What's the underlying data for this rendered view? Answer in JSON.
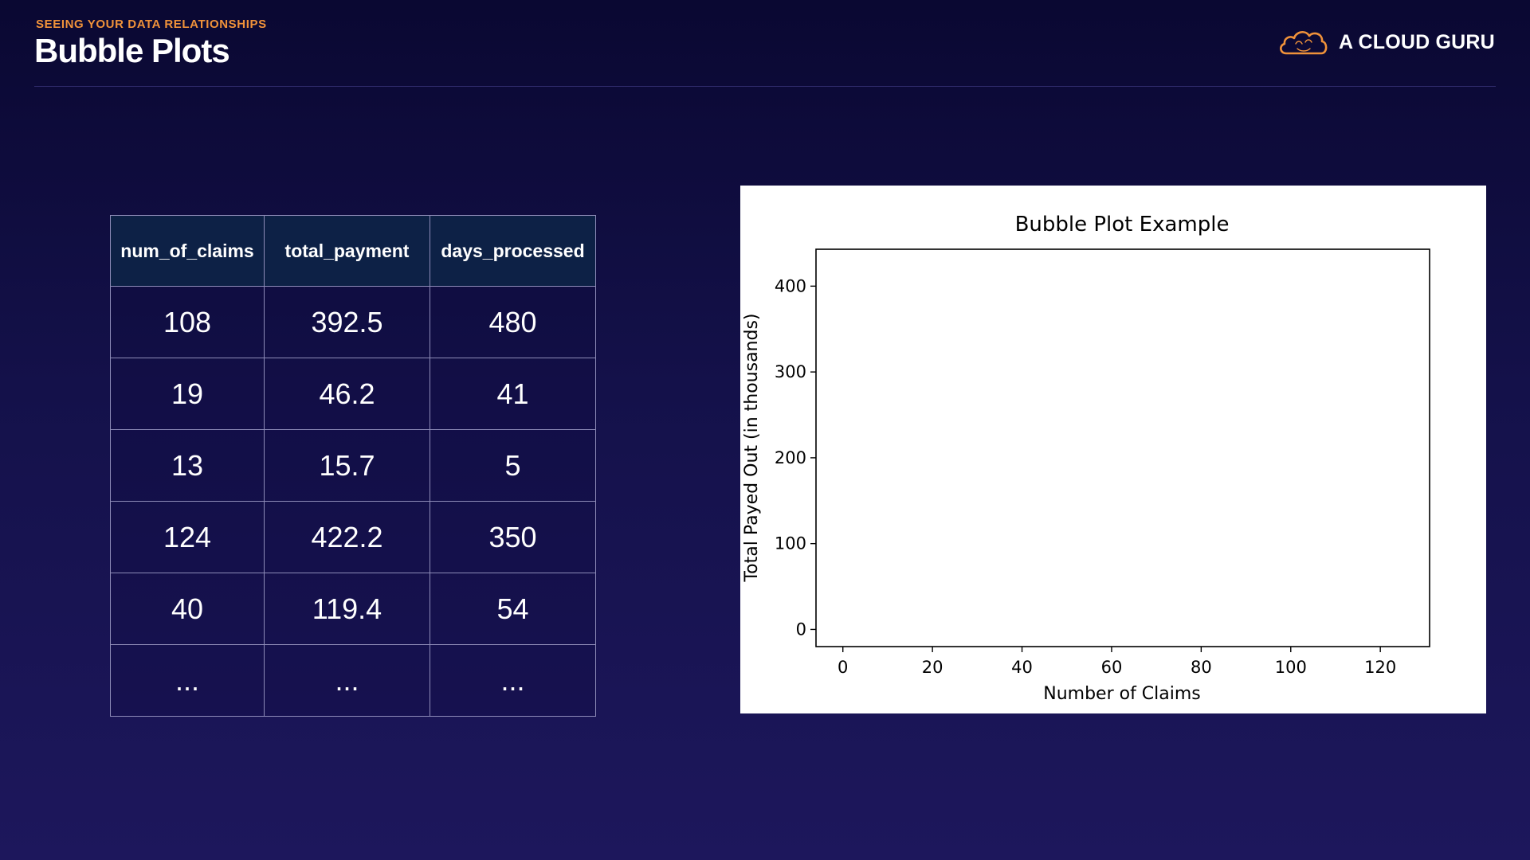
{
  "header": {
    "eyebrow": "SEEING YOUR DATA RELATIONSHIPS",
    "title": "Bubble Plots",
    "logo_text": "A CLOUD GURU",
    "logo_icon": "cloud-logo-icon",
    "accent_color": "#f0923a"
  },
  "table": {
    "columns": [
      "num_of_claims",
      "total_payment",
      "days_processed"
    ],
    "rows": [
      [
        "108",
        "392.5",
        "480"
      ],
      [
        "19",
        "46.2",
        "41"
      ],
      [
        "13",
        "15.7",
        "5"
      ],
      [
        "124",
        "422.2",
        "350"
      ],
      [
        "40",
        "119.4",
        "54"
      ],
      [
        "...",
        "...",
        "..."
      ]
    ]
  },
  "chart_data": {
    "type": "scatter",
    "title": "Bubble Plot Example",
    "xlabel": "Number of Claims",
    "ylabel": "Total Payed Out (in thousands)",
    "xlim": [
      -6,
      131
    ],
    "ylim": [
      -20,
      443
    ],
    "x_ticks": [
      0,
      20,
      40,
      60,
      80,
      100,
      120
    ],
    "y_ticks": [
      0,
      100,
      200,
      300,
      400
    ],
    "grid": false,
    "points": []
  }
}
